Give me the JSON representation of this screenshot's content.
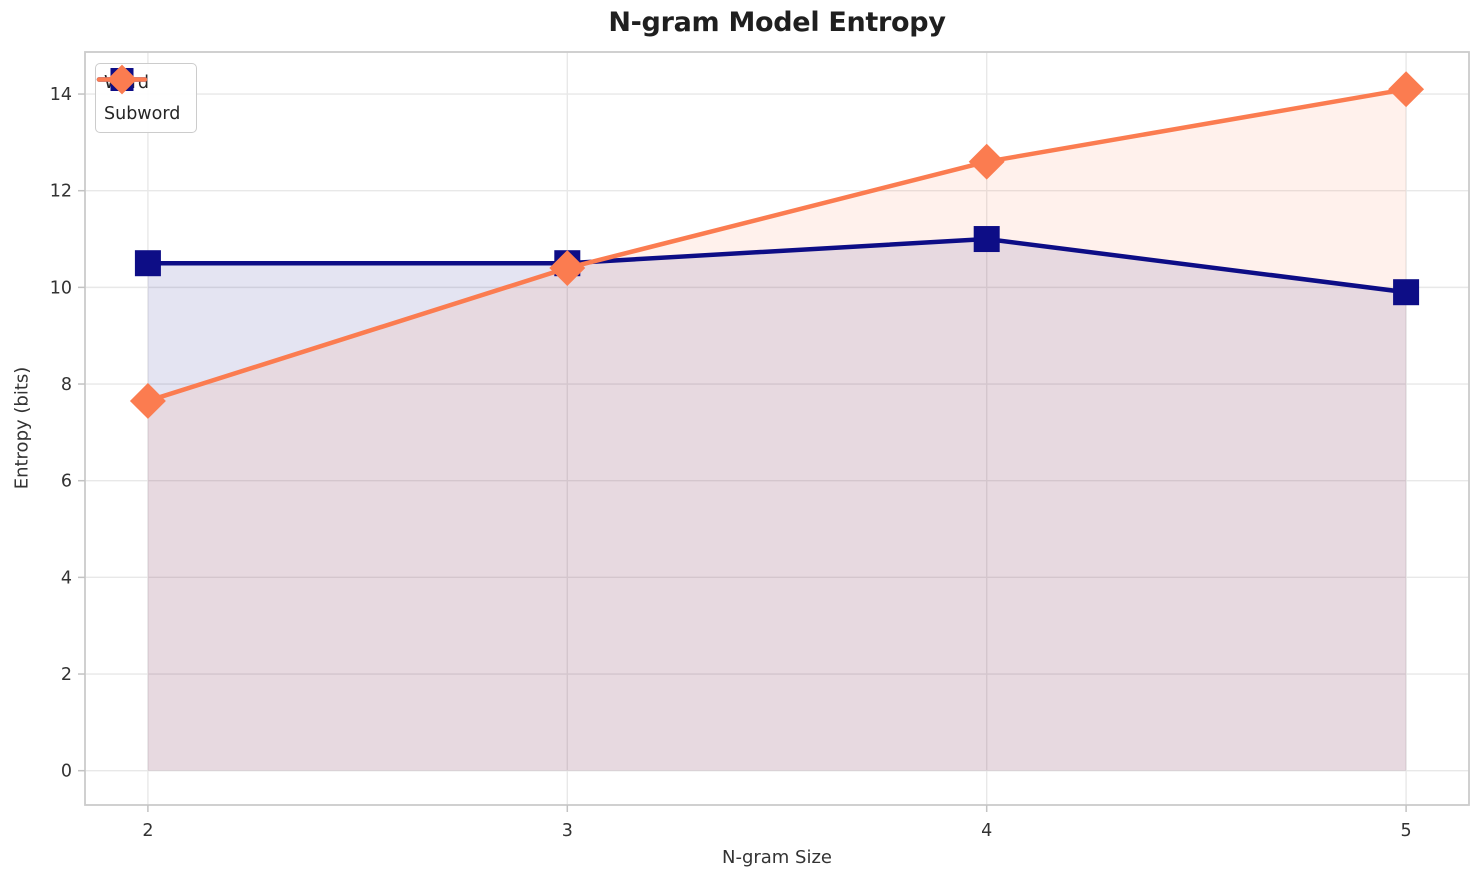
{
  "chart_data": {
    "type": "line",
    "title": "N-gram Model Entropy",
    "xlabel": "N-gram Size",
    "ylabel": "Entropy (bits)",
    "x": [
      2,
      3,
      4,
      5
    ],
    "series": [
      {
        "name": "Word",
        "values": [
          10.5,
          10.5,
          11.0,
          9.9
        ],
        "color": "#0d0d86",
        "marker": "square",
        "fill_to_zero": true
      },
      {
        "name": "Subword",
        "values": [
          7.65,
          10.4,
          12.6,
          14.1
        ],
        "color": "#fb7c50",
        "marker": "diamond",
        "fill_to_zero": true
      }
    ],
    "xticks": [
      "2",
      "3",
      "4",
      "5"
    ],
    "xtick_values": [
      2,
      3,
      4,
      5
    ],
    "yticks": [
      "0",
      "2",
      "4",
      "6",
      "8",
      "10",
      "12",
      "14"
    ],
    "ytick_values": [
      0,
      2,
      4,
      6,
      8,
      10,
      12,
      14
    ],
    "xlim": [
      1.85,
      5.15
    ],
    "ylim": [
      -0.71,
      14.87
    ],
    "grid": true,
    "legend_position": "upper-left",
    "fill_opacity": 0.11,
    "colors": {
      "background": "#ffffff",
      "grid": "#e8e8e8",
      "spine": "#cbcbcb",
      "tick_mark": "#c3c3c3",
      "tick_text": "#333333",
      "title_text": "#1f1f1f"
    }
  }
}
